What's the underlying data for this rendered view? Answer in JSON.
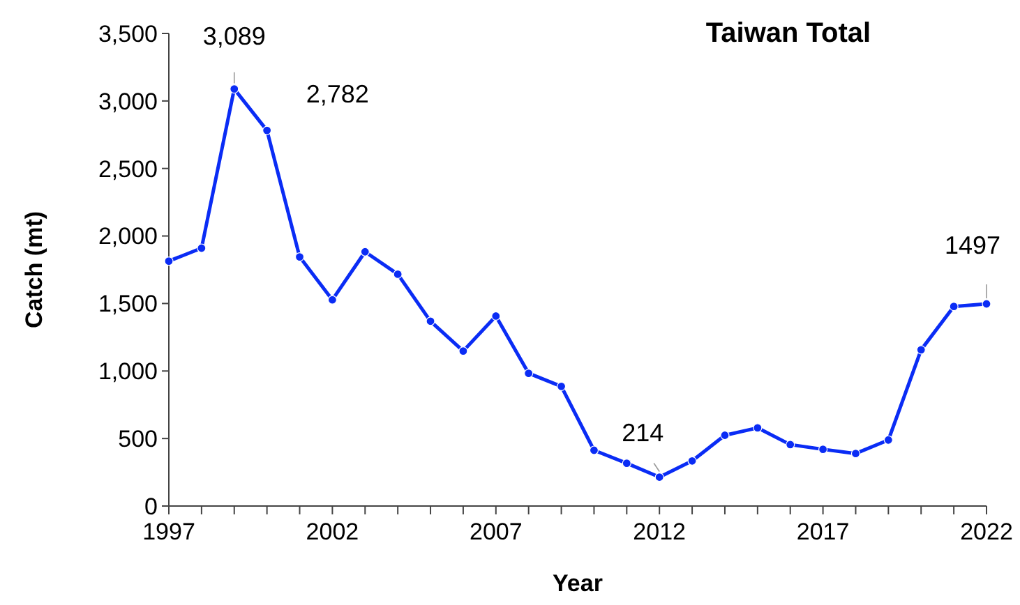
{
  "chart_data": {
    "type": "line",
    "title": "Taiwan Total",
    "xlabel": "Year",
    "ylabel": "Catch (mt)",
    "x": [
      1997,
      1998,
      1999,
      2000,
      2001,
      2002,
      2003,
      2004,
      2005,
      2006,
      2007,
      2008,
      2009,
      2010,
      2011,
      2012,
      2013,
      2014,
      2015,
      2016,
      2017,
      2018,
      2019,
      2020,
      2021,
      2022
    ],
    "series": [
      {
        "color": "#0a2cf5",
        "values": [
          1814,
          1910,
          3089,
          2782,
          1845,
          1527,
          1883,
          1717,
          1369,
          1148,
          1407,
          983,
          886,
          413,
          317,
          214,
          334,
          524,
          579,
          455,
          420,
          389,
          489,
          1157,
          1478,
          1497
        ]
      }
    ],
    "annotations": [
      {
        "text": "3,089",
        "x": 1999,
        "y": 3089
      },
      {
        "text": "2,782",
        "x": 2000,
        "y": 2782
      },
      {
        "text": "214",
        "x": 2012,
        "y": 214
      },
      {
        "text": "1497",
        "x": 2022,
        "y": 1497
      }
    ],
    "xlim": [
      1997,
      2022
    ],
    "xticks": [
      1997,
      {
        "value": 1998,
        "label": null
      },
      {
        "value": 1999,
        "label": null
      },
      {
        "value": 2000,
        "label": null
      },
      {
        "value": 2001,
        "label": null
      },
      2002,
      {
        "value": 2003,
        "label": null
      },
      {
        "value": 2004,
        "label": null
      },
      {
        "value": 2005,
        "label": null
      },
      {
        "value": 2006,
        "label": null
      },
      2007,
      {
        "value": 2008,
        "label": null
      },
      {
        "value": 2009,
        "label": null
      },
      {
        "value": 2010,
        "label": null
      },
      {
        "value": 2011,
        "label": null
      },
      2012,
      {
        "value": 2013,
        "label": null
      },
      {
        "value": 2014,
        "label": null
      },
      {
        "value": 2015,
        "label": null
      },
      {
        "value": 2016,
        "label": null
      },
      2017,
      {
        "value": 2018,
        "label": null
      },
      {
        "value": 2019,
        "label": null
      },
      {
        "value": 2020,
        "label": null
      },
      {
        "value": 2021,
        "label": null
      },
      2022
    ],
    "ylim": [
      0,
      3500
    ],
    "yticks": [
      {
        "value": 0,
        "label": "0"
      },
      {
        "value": 500,
        "label": "500"
      },
      {
        "value": 1000,
        "label": "1,000"
      },
      {
        "value": 1500,
        "label": "1,500"
      },
      {
        "value": 2000,
        "label": "2,000"
      },
      {
        "value": 2500,
        "label": "2,500"
      },
      {
        "value": 3000,
        "label": "3,000"
      },
      {
        "value": 3500,
        "label": "3,500"
      }
    ],
    "grid": false,
    "marker": "circle",
    "line_style": "solid"
  }
}
